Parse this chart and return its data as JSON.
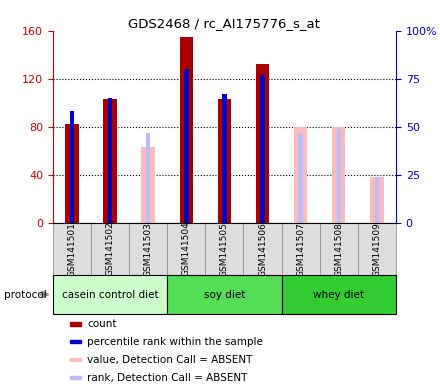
{
  "title": "GDS2468 / rc_AI175776_s_at",
  "samples": [
    "GSM141501",
    "GSM141502",
    "GSM141503",
    "GSM141504",
    "GSM141505",
    "GSM141506",
    "GSM141507",
    "GSM141508",
    "GSM141509"
  ],
  "count_values": [
    82,
    103,
    0,
    155,
    103,
    132,
    0,
    0,
    0
  ],
  "percentile_values": [
    58,
    65,
    0,
    80,
    67,
    77,
    0,
    0,
    0
  ],
  "absent_value_values": [
    0,
    0,
    63,
    0,
    0,
    0,
    80,
    80,
    38
  ],
  "absent_rank_values": [
    0,
    0,
    47,
    0,
    0,
    0,
    47,
    49,
    24
  ],
  "protocols": [
    {
      "label": "casein control diet",
      "start": 0,
      "end": 3,
      "color": "#ccffcc"
    },
    {
      "label": "soy diet",
      "start": 3,
      "end": 6,
      "color": "#55dd55"
    },
    {
      "label": "whey diet",
      "start": 6,
      "end": 9,
      "color": "#33cc33"
    }
  ],
  "ylim_left": [
    0,
    160
  ],
  "ylim_right": [
    0,
    100
  ],
  "yticks_left": [
    0,
    40,
    80,
    120,
    160
  ],
  "ytick_labels_left": [
    "0",
    "40",
    "80",
    "120",
    "160"
  ],
  "yticks_right": [
    0,
    25,
    50,
    75,
    100
  ],
  "ytick_labels_right": [
    "0",
    "25",
    "50",
    "75",
    "100%"
  ],
  "color_count": "#aa0000",
  "color_percentile": "#0000cc",
  "color_absent_value": "#ffbbbb",
  "color_absent_rank": "#bbbbff",
  "bar_width": 0.35,
  "percentile_bar_width": 0.12,
  "legend_items": [
    {
      "color": "#aa0000",
      "label": "count"
    },
    {
      "color": "#0000cc",
      "label": "percentile rank within the sample"
    },
    {
      "color": "#ffbbbb",
      "label": "value, Detection Call = ABSENT"
    },
    {
      "color": "#bbbbff",
      "label": "rank, Detection Call = ABSENT"
    }
  ],
  "protocol_label": "protocol",
  "background_color": "#ffffff",
  "plot_bg": "#ffffff",
  "tick_label_color_left": "#cc0000",
  "tick_label_color_right": "#0000cc",
  "sample_box_color": "#dddddd"
}
